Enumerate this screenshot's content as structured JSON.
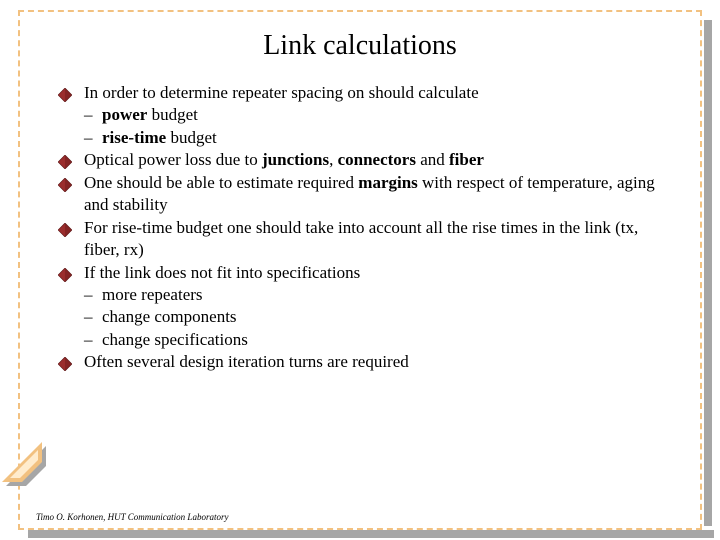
{
  "colors": {
    "bullet_fill": "#9b2d2d",
    "bullet_stroke": "#5a1515",
    "border_dash": "#f2c180",
    "shadow": "#a6a6a6",
    "deco_fill": "#f2c180",
    "deco_inner": "#ffeccd",
    "text": "#000000"
  },
  "title": "Link calculations",
  "bullets": [
    {
      "text": "In order to determine repeater spacing on should calculate",
      "sub": [
        {
          "html": "<b>power</b> budget"
        },
        {
          "html": "<b>rise-time</b> budget"
        }
      ]
    },
    {
      "html": "Optical power loss due to <b>junctions</b>, <b>connectors</b> and <b>fiber</b>"
    },
    {
      "html": "One should be able to estimate required <b>margins</b> with respect of temperature, aging and stability"
    },
    {
      "text": "For rise-time budget one should take into account all the rise times in the link (tx, fiber, rx)"
    },
    {
      "text": " If the link does not fit into specifications",
      "sub": [
        {
          "text": "more repeaters"
        },
        {
          "text": "change components"
        },
        {
          "text": "change specifications"
        }
      ]
    },
    {
      "text": "Often several design iteration turns are required"
    }
  ],
  "footer": "Timo O. Korhonen, HUT Communication Laboratory"
}
